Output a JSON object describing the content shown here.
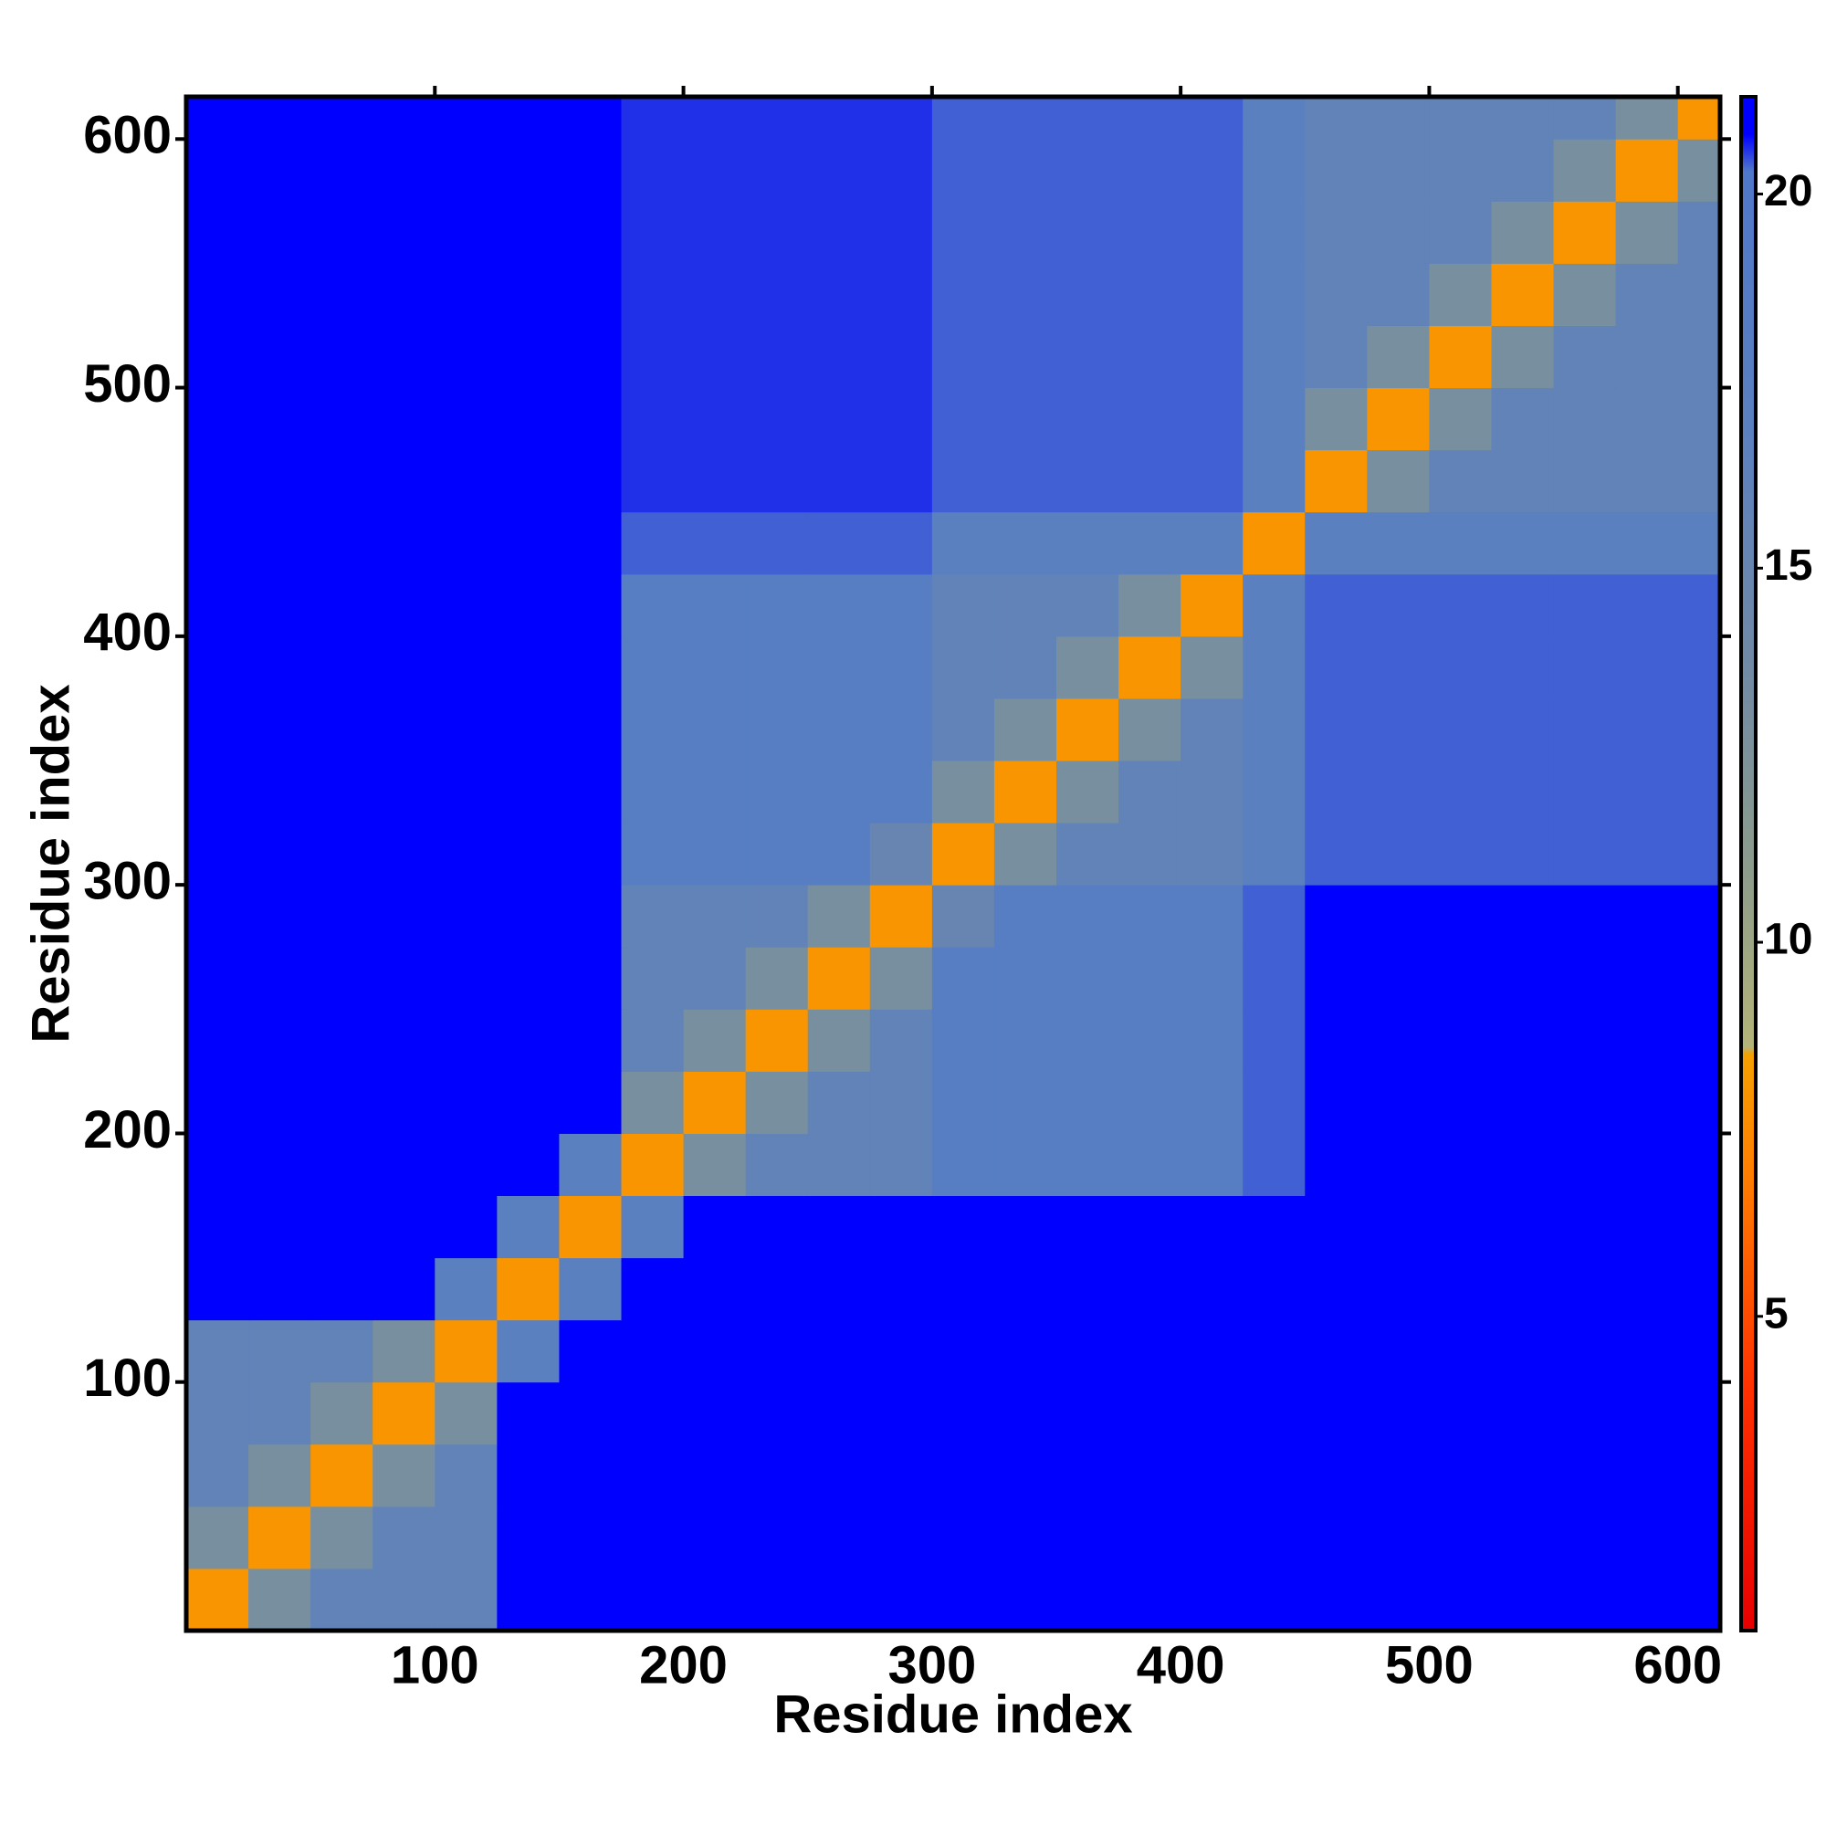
{
  "chart_data": {
    "type": "heatmap",
    "xlabel": "Residue index",
    "ylabel": "Residue index",
    "xlim": [
      0,
      617
    ],
    "ylim": [
      0,
      617
    ],
    "xticks": [
      100,
      200,
      300,
      400,
      500,
      600
    ],
    "yticks": [
      100,
      200,
      300,
      400,
      500,
      600
    ],
    "xbins": [
      0,
      25,
      50,
      75,
      100,
      125,
      150,
      175,
      200,
      225,
      250,
      275,
      300,
      325,
      350,
      375,
      400,
      425,
      450,
      475,
      500,
      525,
      550,
      575,
      600,
      625
    ],
    "ybins": [
      0,
      25,
      50,
      75,
      100,
      125,
      150,
      175,
      200,
      225,
      250,
      275,
      300,
      325,
      350,
      375,
      400,
      425,
      450,
      475,
      500,
      525,
      550,
      575,
      600,
      625
    ],
    "values": [
      [
        8,
        13,
        16,
        16,
        16,
        21,
        21,
        21,
        21,
        21,
        21,
        21,
        21,
        21,
        21,
        21,
        21,
        21,
        21,
        21,
        21,
        21,
        21,
        21,
        21
      ],
      [
        13,
        8,
        13,
        16,
        16,
        21,
        21,
        21,
        21,
        21,
        21,
        21,
        21,
        21,
        21,
        21,
        21,
        21,
        21,
        21,
        21,
        21,
        21,
        21,
        21
      ],
      [
        16,
        13,
        8,
        13,
        16,
        21,
        21,
        21,
        21,
        21,
        21,
        21,
        21,
        21,
        21,
        21,
        21,
        21,
        21,
        21,
        21,
        21,
        21,
        21,
        21
      ],
      [
        16,
        16,
        13,
        8,
        13,
        21,
        21,
        21,
        21,
        21,
        21,
        21,
        21,
        21,
        21,
        21,
        21,
        21,
        21,
        21,
        21,
        21,
        21,
        21,
        21
      ],
      [
        16,
        16,
        16,
        13,
        8,
        17,
        21,
        21,
        21,
        21,
        21,
        21,
        21,
        21,
        21,
        21,
        21,
        21,
        21,
        21,
        21,
        21,
        21,
        21,
        21
      ],
      [
        21,
        21,
        21,
        21,
        17,
        8,
        17,
        21,
        21,
        21,
        21,
        21,
        21,
        21,
        21,
        21,
        21,
        21,
        21,
        21,
        21,
        21,
        21,
        21,
        21
      ],
      [
        21,
        21,
        21,
        21,
        21,
        17,
        8,
        17,
        21,
        21,
        21,
        21,
        21,
        21,
        21,
        21,
        21,
        21,
        21,
        21,
        21,
        21,
        21,
        21,
        21
      ],
      [
        21,
        21,
        21,
        21,
        21,
        21,
        17,
        8,
        13,
        16,
        16,
        16,
        18,
        18,
        18,
        18,
        18,
        20.4,
        21,
        21,
        21,
        21,
        21,
        21,
        21
      ],
      [
        21,
        21,
        21,
        21,
        21,
        21,
        21,
        13,
        8,
        13,
        16,
        16,
        18,
        18,
        18,
        18,
        18,
        20.4,
        21,
        21,
        21,
        21,
        21,
        21,
        21
      ],
      [
        21,
        21,
        21,
        21,
        21,
        21,
        21,
        16,
        13,
        8,
        13,
        16,
        18,
        18,
        18,
        18,
        18,
        20.4,
        21,
        21,
        21,
        21,
        21,
        21,
        21
      ],
      [
        21,
        21,
        21,
        21,
        21,
        21,
        21,
        16,
        16,
        13,
        8,
        13,
        18,
        18,
        18,
        18,
        18,
        20.4,
        21,
        21,
        21,
        21,
        21,
        21,
        21
      ],
      [
        21,
        21,
        21,
        21,
        21,
        21,
        21,
        16,
        16,
        16,
        13,
        8,
        15,
        18,
        18,
        18,
        18,
        20.4,
        21,
        21,
        21,
        21,
        21,
        21,
        21
      ],
      [
        21,
        21,
        21,
        21,
        21,
        21,
        21,
        18,
        18,
        18,
        18,
        15,
        8,
        13,
        16,
        16,
        16,
        17,
        20.4,
        20.4,
        20.4,
        20.4,
        20.4,
        20.4,
        20.4
      ],
      [
        21,
        21,
        21,
        21,
        21,
        21,
        21,
        18,
        18,
        18,
        18,
        18,
        13,
        8,
        13,
        16,
        16,
        17,
        20.4,
        20.4,
        20.4,
        20.4,
        20.4,
        20.4,
        20.4
      ],
      [
        21,
        21,
        21,
        21,
        21,
        21,
        21,
        18,
        18,
        18,
        18,
        18,
        16,
        13,
        8,
        13,
        16,
        17,
        20.4,
        20.4,
        20.4,
        20.4,
        20.4,
        20.4,
        20.4
      ],
      [
        21,
        21,
        21,
        21,
        21,
        21,
        21,
        18,
        18,
        18,
        18,
        18,
        16,
        16,
        13,
        8,
        13,
        17,
        20.4,
        20.4,
        20.4,
        20.4,
        20.4,
        20.4,
        20.4
      ],
      [
        21,
        21,
        21,
        21,
        21,
        21,
        21,
        18,
        18,
        18,
        18,
        18,
        16,
        16,
        16,
        13,
        8,
        17,
        20.4,
        20.4,
        20.4,
        20.4,
        20.4,
        20.4,
        20.4
      ],
      [
        21,
        21,
        21,
        21,
        21,
        21,
        21,
        20.4,
        20.4,
        20.4,
        20.4,
        20.4,
        17,
        17,
        17,
        17,
        17,
        8,
        17,
        17,
        17,
        17,
        17,
        17,
        17
      ],
      [
        21,
        21,
        21,
        21,
        21,
        21,
        21,
        20.6,
        20.6,
        20.6,
        20.6,
        20.6,
        20.4,
        20.4,
        20.4,
        20.4,
        20.4,
        17,
        8,
        13,
        16,
        16,
        16,
        16,
        16
      ],
      [
        21,
        21,
        21,
        21,
        21,
        21,
        21,
        20.6,
        20.6,
        20.6,
        20.6,
        20.6,
        20.4,
        20.4,
        20.4,
        20.4,
        20.4,
        17,
        13,
        8,
        13,
        16,
        16,
        16,
        16
      ],
      [
        21,
        21,
        21,
        21,
        21,
        21,
        21,
        20.6,
        20.6,
        20.6,
        20.6,
        20.6,
        20.4,
        20.4,
        20.4,
        20.4,
        20.4,
        17,
        16,
        13,
        8,
        13,
        16,
        16,
        16
      ],
      [
        21,
        21,
        21,
        21,
        21,
        21,
        21,
        20.6,
        20.6,
        20.6,
        20.6,
        20.6,
        20.4,
        20.4,
        20.4,
        20.4,
        20.4,
        17,
        16,
        16,
        13,
        8,
        13,
        16,
        16
      ],
      [
        21,
        21,
        21,
        21,
        21,
        21,
        21,
        20.6,
        20.6,
        20.6,
        20.6,
        20.6,
        20.4,
        20.4,
        20.4,
        20.4,
        20.4,
        17,
        16,
        16,
        16,
        13,
        8,
        13,
        16
      ],
      [
        21,
        21,
        21,
        21,
        21,
        21,
        21,
        20.6,
        20.6,
        20.6,
        20.6,
        20.6,
        20.4,
        20.4,
        20.4,
        20.4,
        20.4,
        17,
        16,
        16,
        16,
        16,
        13,
        8,
        13
      ],
      [
        21,
        21,
        21,
        21,
        21,
        21,
        21,
        20.6,
        20.6,
        20.6,
        20.6,
        20.6,
        20.4,
        20.4,
        20.4,
        20.4,
        20.4,
        17,
        16,
        16,
        16,
        16,
        16,
        13,
        8
      ]
    ],
    "zlim": [
      0.8,
      21.3
    ],
    "zticks": [
      5,
      10,
      15,
      20
    ],
    "colorscale": [
      [
        0.8,
        "#e60000"
      ],
      [
        4,
        "#ff3000"
      ],
      [
        7,
        "#ff8000"
      ],
      [
        8.5,
        "#f5a000"
      ],
      [
        8.6,
        "#b4b478"
      ],
      [
        11,
        "#8c9c8c"
      ],
      [
        14,
        "#6e88a8"
      ],
      [
        17,
        "#5a80c0"
      ],
      [
        20.3,
        "#5078c8"
      ],
      [
        20.8,
        "#0000ff"
      ],
      [
        21.3,
        "#0000ff"
      ]
    ]
  }
}
